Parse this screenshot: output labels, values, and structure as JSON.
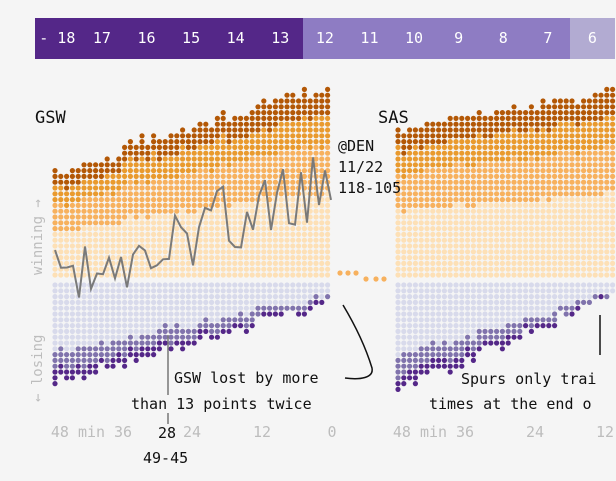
{
  "legend": {
    "cells": [
      {
        "label": "- 18",
        "color": "#542788"
      },
      {
        "label": "17",
        "color": "#542788"
      },
      {
        "label": "16",
        "color": "#542788"
      },
      {
        "label": "15",
        "color": "#542788"
      },
      {
        "label": "14",
        "color": "#542788"
      },
      {
        "label": "13",
        "color": "#542788"
      },
      {
        "label": "12",
        "color": "#8e7cc3"
      },
      {
        "label": "11",
        "color": "#8e7cc3"
      },
      {
        "label": "10",
        "color": "#8e7cc3"
      },
      {
        "label": "9",
        "color": "#8e7cc3"
      },
      {
        "label": "8",
        "color": "#8e7cc3"
      },
      {
        "label": "7",
        "color": "#8e7cc3"
      },
      {
        "label": "6",
        "color": "#b2abd2"
      }
    ]
  },
  "side_labels": {
    "winning": "winning →",
    "losing": "← losing"
  },
  "x_ticks": [
    "48 min",
    "36",
    "24",
    "12",
    "0"
  ],
  "colors": {
    "win_light": "#fde0b6",
    "win_mid": "#f7b15e",
    "win_mid2": "#e99a2e",
    "win_dark": "#b35806",
    "lose_light": "#d8daeb",
    "lose_mid": "#8073ac",
    "lose_dark": "#542788",
    "line": "#7a7a7a"
  },
  "chart_data": [
    {
      "type": "scatter",
      "team": "GSW",
      "xlabel": "min",
      "x_ticks": [
        "48 min",
        "36",
        "24",
        "12",
        "0"
      ],
      "highlight_game": {
        "label": "@DEN",
        "date": "11/22",
        "score": "118-105"
      },
      "marked_game": {
        "label": "28",
        "score": "49-45"
      },
      "annotation": [
        "GSW lost by more",
        "than 13 points twice"
      ]
    },
    {
      "type": "scatter",
      "team": "SAS",
      "xlabel": "min",
      "x_ticks": [
        "48 min",
        "36",
        "24",
        "12"
      ],
      "annotation": [
        "Spurs only trai",
        "times at the end o"
      ]
    }
  ]
}
